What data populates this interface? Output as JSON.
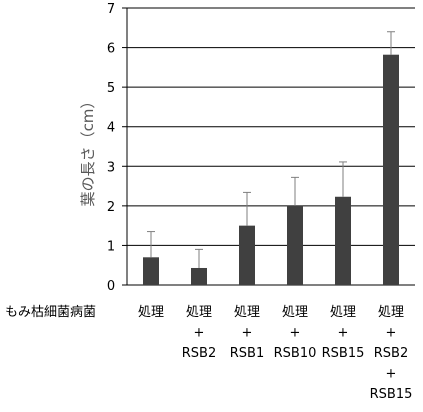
{
  "chart_data": {
    "type": "bar",
    "title": "",
    "xlabel": "",
    "ylabel": "葉の長さ（cm）",
    "ylim": [
      0,
      7
    ],
    "yticks": [
      0,
      1,
      2,
      3,
      4,
      5,
      6,
      7
    ],
    "grid": true,
    "row_label": "もみ枯細菌病菌",
    "categories": [
      [
        "処理"
      ],
      [
        "処理",
        "+",
        "RSB2"
      ],
      [
        "処理",
        "+",
        "RSB1"
      ],
      [
        "処理",
        "+",
        "RSB10"
      ],
      [
        "処理",
        "+",
        "RSB15"
      ],
      [
        "処理",
        "+",
        "RSB2",
        "+",
        "RSB15"
      ]
    ],
    "series": [
      {
        "values": [
          0.7,
          0.43,
          1.5,
          2.0,
          2.23,
          5.82
        ],
        "error": [
          0.65,
          0.47,
          0.84,
          0.72,
          0.88,
          0.58
        ],
        "color": "#404040"
      }
    ]
  }
}
